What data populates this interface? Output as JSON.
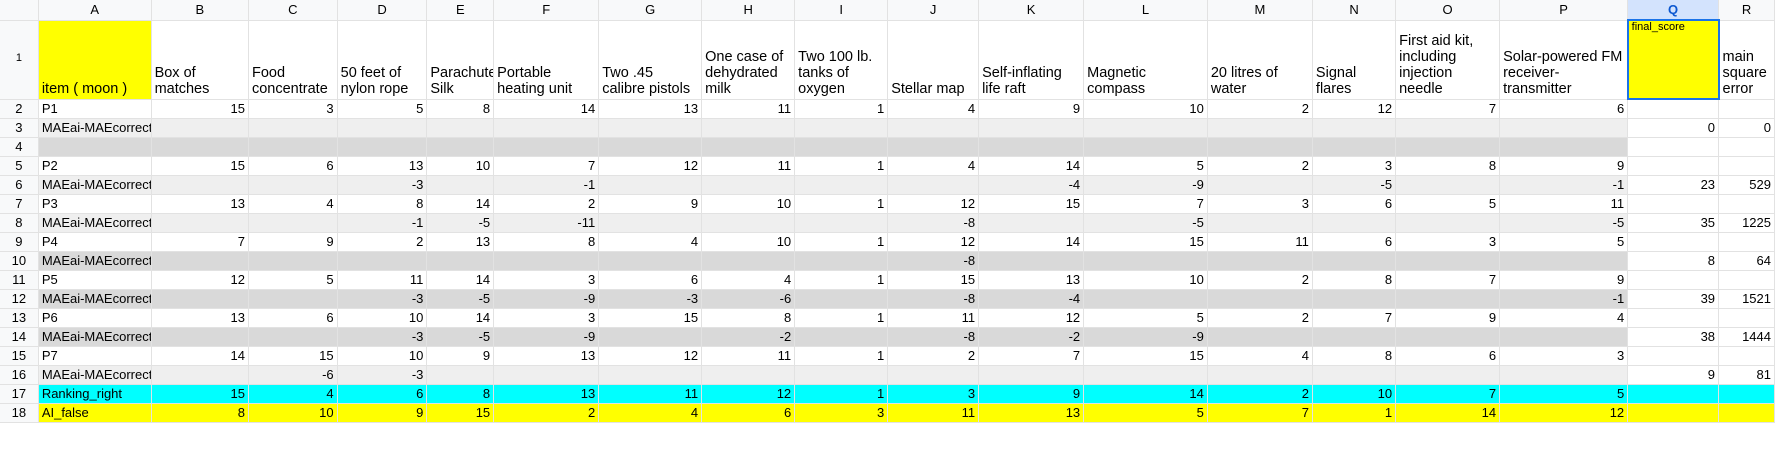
{
  "col_letters": [
    "A",
    "B",
    "C",
    "D",
    "E",
    "F",
    "G",
    "H",
    "I",
    "J",
    "K",
    "L",
    "M",
    "N",
    "O",
    "P",
    "Q",
    "R"
  ],
  "selected_column": "Q",
  "header_row": {
    "row_number": "1",
    "cells": [
      "item ( moon )",
      "Box of matches",
      "Food concentrate",
      "50 feet of nylon rope",
      "Parachute Silk",
      "Portable heating unit",
      "Two .45 calibre pistols",
      "One case of dehydrated milk",
      "Two 100 lb. tanks of oxygen",
      "Stellar map",
      "Self-inflating life raft",
      "Magnetic compass",
      "20 litres of water",
      "Signal flares",
      "First aid kit, including injection needle",
      "Solar-powered FM receiver-transmitter",
      "final_score",
      "main square error"
    ]
  },
  "rows": [
    {
      "n": "2",
      "style": "",
      "cells": [
        "P1",
        "15",
        "3",
        "5",
        "8",
        "14",
        "13",
        "11",
        "1",
        "4",
        "9",
        "10",
        "2",
        "12",
        "7",
        "6",
        "",
        ""
      ]
    },
    {
      "n": "3",
      "style": "gray",
      "cells": [
        "MAEai-MAEcorrect",
        "",
        "",
        "",
        "",
        "",
        "",
        "",
        "",
        "",
        "",
        "",
        "",
        "",
        "",
        "",
        "0",
        "0"
      ]
    },
    {
      "n": "4",
      "style": "dark",
      "cells": [
        "",
        "",
        "",
        "",
        "",
        "",
        "",
        "",
        "",
        "",
        "",
        "",
        "",
        "",
        "",
        "",
        "",
        ""
      ]
    },
    {
      "n": "5",
      "style": "",
      "cells": [
        "P2",
        "15",
        "6",
        "13",
        "10",
        "7",
        "12",
        "11",
        "1",
        "4",
        "14",
        "5",
        "2",
        "3",
        "8",
        "9",
        "",
        ""
      ]
    },
    {
      "n": "6",
      "style": "gray",
      "cells": [
        "MAEai-MAEcorrect",
        "",
        "",
        "-3",
        "",
        "-1",
        "",
        "",
        "",
        "",
        "-4",
        "-9",
        "",
        "-5",
        "",
        "-1",
        "23",
        "529"
      ]
    },
    {
      "n": "7",
      "style": "",
      "cells": [
        "P3",
        "13",
        "4",
        "8",
        "14",
        "2",
        "9",
        "10",
        "1",
        "12",
        "15",
        "7",
        "3",
        "6",
        "5",
        "11",
        "",
        ""
      ]
    },
    {
      "n": "8",
      "style": "gray",
      "cells": [
        "MAEai-MAEcorrect",
        "",
        "",
        "-1",
        "-5",
        "-11",
        "",
        "",
        "",
        "-8",
        "",
        "-5",
        "",
        "",
        "",
        "-5",
        "35",
        "1225"
      ]
    },
    {
      "n": "9",
      "style": "",
      "cells": [
        "P4",
        "7",
        "9",
        "2",
        "13",
        "8",
        "4",
        "10",
        "1",
        "12",
        "14",
        "15",
        "11",
        "6",
        "3",
        "5",
        "",
        ""
      ]
    },
    {
      "n": "10",
      "style": "dark",
      "cells": [
        "MAEai-MAEcorrect",
        "",
        "",
        "",
        "",
        "",
        "",
        "",
        "",
        "-8",
        "",
        "",
        "",
        "",
        "",
        "",
        "8",
        "64"
      ]
    },
    {
      "n": "11",
      "style": "",
      "cells": [
        "P5",
        "12",
        "5",
        "11",
        "14",
        "3",
        "6",
        "4",
        "1",
        "15",
        "13",
        "10",
        "2",
        "8",
        "7",
        "9",
        "",
        ""
      ]
    },
    {
      "n": "12",
      "style": "dark",
      "cells": [
        "MAEai-MAEcorrect",
        "",
        "",
        "-3",
        "-5",
        "-9",
        "-3",
        "-6",
        "",
        "-8",
        "-4",
        "",
        "",
        "",
        "",
        "-1",
        "39",
        "1521"
      ]
    },
    {
      "n": "13",
      "style": "",
      "cells": [
        "P6",
        "13",
        "6",
        "10",
        "14",
        "3",
        "15",
        "8",
        "1",
        "11",
        "12",
        "5",
        "2",
        "7",
        "9",
        "4",
        "",
        ""
      ]
    },
    {
      "n": "14",
      "style": "dark",
      "cells": [
        "MAEai-MAEcorrect",
        "",
        "",
        "-3",
        "-5",
        "-9",
        "",
        "-2",
        "",
        "-8",
        "-2",
        "-9",
        "",
        "",
        "",
        "",
        "38",
        "1444"
      ]
    },
    {
      "n": "15",
      "style": "",
      "cells": [
        "P7",
        "14",
        "15",
        "10",
        "9",
        "13",
        "12",
        "11",
        "1",
        "2",
        "7",
        "15",
        "4",
        "8",
        "6",
        "3",
        "",
        ""
      ]
    },
    {
      "n": "16",
      "style": "gray",
      "cells": [
        "MAEai-MAEcorrect",
        "",
        "-6",
        "-3",
        "",
        "",
        "",
        "",
        "",
        "",
        "",
        "",
        "",
        "",
        "",
        "",
        "9",
        "81"
      ]
    },
    {
      "n": "17",
      "style": "cyan",
      "cells": [
        "Ranking_right",
        "15",
        "4",
        "6",
        "8",
        "13",
        "11",
        "12",
        "1",
        "3",
        "9",
        "14",
        "2",
        "10",
        "7",
        "5",
        "",
        ""
      ]
    },
    {
      "n": "18",
      "style": "yel",
      "cells": [
        "AI_false",
        "8",
        "10",
        "9",
        "15",
        "2",
        "4",
        "6",
        "3",
        "11",
        "13",
        "5",
        "7",
        "1",
        "14",
        "12",
        "",
        ""
      ]
    }
  ],
  "colors": {
    "highlight_yellow": "#ffff00",
    "cyan": "#00ffff",
    "selection_blue": "#1a73e8"
  }
}
